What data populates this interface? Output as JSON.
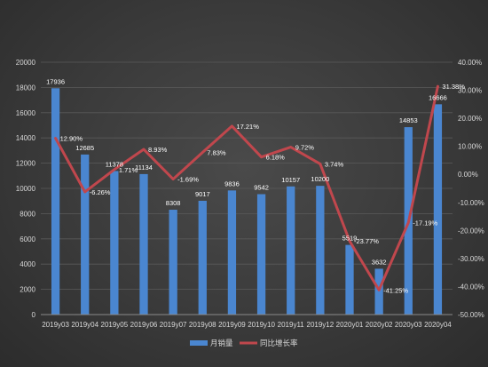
{
  "chart_data": {
    "type": "bar+line",
    "categories": [
      "2019y03",
      "2019y04",
      "2019y05",
      "2019y06",
      "2019y07",
      "2019y08",
      "2019y09",
      "2019y10",
      "2019y11",
      "2019y12",
      "2020y01",
      "2020y02",
      "2020y03",
      "2020y04"
    ],
    "series": [
      {
        "name": "月销量",
        "type": "bar",
        "axis": "left",
        "color": "#4a86d0",
        "values": [
          17936,
          12685,
          11378,
          11134,
          8308,
          9017,
          9836,
          9542,
          10157,
          10200,
          5519,
          3632,
          14853,
          16666
        ],
        "labels": [
          "17936",
          "12685",
          "11378",
          "11134",
          "8308",
          "9017",
          "9836",
          "9542",
          "10157",
          "10200",
          "5519",
          "3632",
          "14853",
          "16666"
        ]
      },
      {
        "name": "同比增长率",
        "type": "line",
        "axis": "right",
        "color": "#c0474d",
        "values": [
          12.9,
          -6.26,
          1.71,
          8.93,
          -1.69,
          7.83,
          17.21,
          6.18,
          9.72,
          3.74,
          -23.77,
          -41.25,
          -17.19,
          31.38
        ],
        "labels": [
          "12.90%",
          "-6.26%",
          "1.71%",
          "8.93%",
          "-1.69%",
          "7.83%",
          "17.21%",
          "6.18%",
          "9.72%",
          "3.74%",
          "-23.77%",
          "-41.25%",
          "-17.19%",
          "31.38%"
        ]
      }
    ],
    "y_left": {
      "ylim": [
        0,
        20000
      ],
      "ticks": [
        "0",
        "2000",
        "4000",
        "6000",
        "8000",
        "10000",
        "12000",
        "14000",
        "16000",
        "18000",
        "20000"
      ]
    },
    "y_right": {
      "ylim": [
        -50,
        40
      ],
      "ticks": [
        "-50.00%",
        "-40.00%",
        "-30.00%",
        "-20.00%",
        "-10.00%",
        "0.00%",
        "10.00%",
        "20.00%",
        "30.00%",
        "40.00%"
      ]
    },
    "grid": true,
    "legend_position": "bottom",
    "colors": {
      "gridline": "#5a5a5a",
      "text": "#d9d9d9",
      "data_label": "#ffffff"
    }
  }
}
